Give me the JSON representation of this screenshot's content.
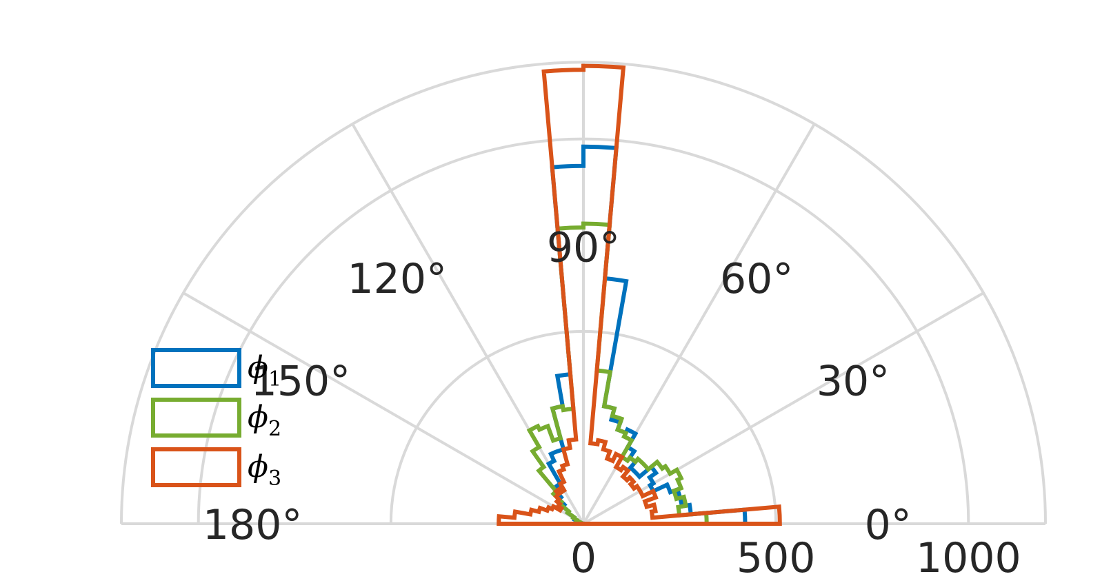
{
  "chart_data": {
    "type": "polar-histogram",
    "title": "",
    "theta_ticks": [
      "0°",
      "30°",
      "60°",
      "90°",
      "120°",
      "150°",
      "180°"
    ],
    "theta_tick_values": [
      0,
      30,
      60,
      90,
      120,
      150,
      180
    ],
    "r_ticks": [
      "0",
      "500",
      "1000"
    ],
    "r_tick_values": [
      0,
      500,
      1000
    ],
    "r_grid_values": [
      500,
      1000,
      1200
    ],
    "rlim": [
      0,
      1200
    ],
    "theta_range": [
      0,
      180
    ],
    "bin_width_deg": 5,
    "grid": true,
    "legend_position": "left",
    "series": [
      {
        "name": "ϕ1",
        "symbol": "ϕ",
        "subscript": "1",
        "color": "#0072bd",
        "bin_centers_deg": [
          2.5,
          7.5,
          12.5,
          17.5,
          22.5,
          27.5,
          32.5,
          37.5,
          42.5,
          47.5,
          52.5,
          57.5,
          62.5,
          67.5,
          72.5,
          77.5,
          82.5,
          87.5,
          92.5,
          97.5,
          102.5,
          107.5,
          112.5,
          117.5,
          122.5,
          127.5,
          132.5,
          137.5,
          142.5,
          147.5,
          152.5,
          157.5,
          162.5,
          167.5,
          172.5,
          177.5
        ],
        "values": [
          420,
          280,
          260,
          260,
          240,
          200,
          210,
          230,
          190,
          190,
          210,
          230,
          270,
          260,
          280,
          310,
          640,
          980,
          930,
          390,
          310,
          200,
          200,
          180,
          120,
          100,
          90,
          70,
          50,
          30,
          25,
          15,
          10,
          5,
          3,
          2
        ]
      },
      {
        "name": "ϕ2",
        "symbol": "ϕ",
        "subscript": "2",
        "color": "#77ac30",
        "bin_centers_deg": [
          2.5,
          7.5,
          12.5,
          17.5,
          22.5,
          27.5,
          32.5,
          37.5,
          42.5,
          47.5,
          52.5,
          57.5,
          62.5,
          67.5,
          72.5,
          77.5,
          82.5,
          87.5,
          92.5,
          97.5,
          102.5,
          107.5,
          112.5,
          117.5,
          122.5,
          127.5,
          132.5,
          137.5,
          142.5,
          147.5,
          152.5,
          157.5,
          162.5,
          167.5,
          172.5,
          177.5
        ],
        "values": [
          320,
          250,
          270,
          250,
          270,
          280,
          260,
          250,
          220,
          220,
          210,
          200,
          250,
          260,
          290,
          310,
          400,
          780,
          770,
          300,
          310,
          230,
          270,
          280,
          230,
          180,
          110,
          80,
          50,
          30,
          20,
          10,
          5,
          3,
          2,
          1
        ]
      },
      {
        "name": "ϕ3",
        "symbol": "ϕ",
        "subscript": "3",
        "color": "#d95319",
        "bin_centers_deg": [
          2.5,
          7.5,
          12.5,
          17.5,
          22.5,
          27.5,
          32.5,
          37.5,
          42.5,
          47.5,
          52.5,
          57.5,
          62.5,
          67.5,
          72.5,
          77.5,
          82.5,
          87.5,
          92.5,
          97.5,
          102.5,
          107.5,
          112.5,
          117.5,
          122.5,
          127.5,
          132.5,
          137.5,
          142.5,
          147.5,
          152.5,
          157.5,
          162.5,
          167.5,
          172.5,
          177.5
        ],
        "values": [
          510,
          180,
          190,
          170,
          200,
          170,
          170,
          160,
          170,
          160,
          180,
          170,
          200,
          180,
          200,
          220,
          210,
          1190,
          1180,
          220,
          200,
          160,
          150,
          120,
          100,
          110,
          100,
          90,
          80,
          70,
          90,
          100,
          120,
          140,
          180,
          220
        ]
      }
    ]
  }
}
